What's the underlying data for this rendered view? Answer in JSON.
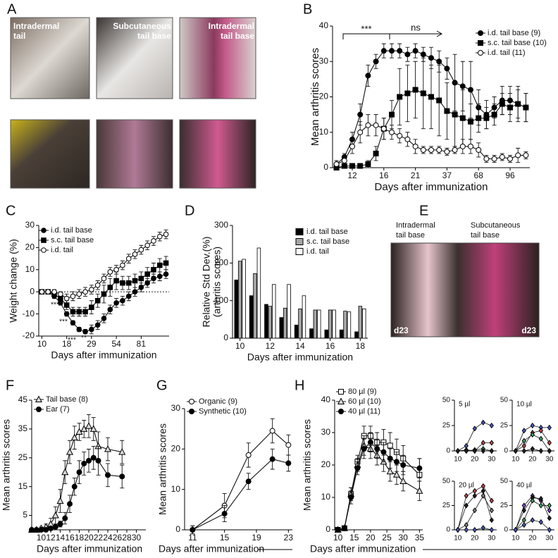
{
  "figure": {
    "A": {
      "letter": "A",
      "labels": [
        [
          "Intradermal",
          "tail"
        ],
        [
          "Subcutaneous",
          "tail base"
        ],
        [
          "Intradermal",
          "tail base"
        ]
      ]
    },
    "E": {
      "letter": "E",
      "labels": [
        [
          "Intradermal",
          "tail base"
        ],
        [
          "Subcutaneous",
          "tail base"
        ]
      ],
      "days": [
        "d23",
        "d23"
      ]
    }
  },
  "chart_data": [
    {
      "panel": "B",
      "type": "line",
      "ylabel": [
        "Mean arthritis scores"
      ],
      "xlabel": "Days after immunization",
      "categories": [
        null,
        null,
        "12",
        null,
        null,
        null,
        "16",
        null,
        null,
        null,
        "21",
        null,
        null,
        null,
        "37",
        null,
        null,
        null,
        "68",
        null,
        null,
        null,
        "96",
        null,
        null
      ],
      "ylim": [
        0,
        40
      ],
      "yticks": [
        0,
        10,
        20,
        30,
        40
      ],
      "legend": "upper right",
      "annotations": [
        "***",
        "ns"
      ],
      "series": [
        {
          "name": "i.d. tail base (9)",
          "color": "#000000",
          "marker": "circle",
          "values": [
            1,
            3,
            8,
            15,
            26,
            30,
            33,
            33,
            33,
            32,
            33,
            32,
            31,
            30,
            28,
            24,
            23,
            22,
            17,
            15,
            17,
            19,
            19,
            18,
            17
          ],
          "errors": [
            1,
            1,
            2,
            3,
            3,
            2,
            2,
            2,
            2,
            2,
            2,
            2,
            3,
            3,
            3,
            8,
            7,
            8,
            5,
            4,
            3,
            4,
            4,
            5,
            4
          ]
        },
        {
          "name": "s.c. tail base (10)",
          "color": "#000000",
          "marker": "square",
          "values": [
            0,
            0.5,
            0.5,
            0.5,
            1,
            4,
            11,
            15,
            20,
            21,
            22,
            21,
            20,
            19,
            16,
            15,
            14,
            13,
            14,
            14,
            15,
            18,
            17,
            18,
            17
          ],
          "errors": [
            0.5,
            0.5,
            0.5,
            0.5,
            1,
            2,
            3,
            4,
            8,
            8,
            8,
            10,
            9,
            10,
            8,
            9,
            8,
            5,
            4,
            3,
            3,
            3,
            4,
            4,
            4
          ]
        },
        {
          "name": "i.d. tail (11)",
          "color": "#ffffff",
          "marker": "circle",
          "values": [
            1,
            2,
            6,
            10,
            12,
            12,
            11,
            10,
            9,
            8,
            6,
            5,
            5,
            5,
            4.5,
            5,
            6,
            6,
            5,
            2.5,
            2.5,
            3,
            2.5,
            3.5,
            3.5
          ],
          "errors": [
            1,
            1,
            2,
            3,
            3,
            3,
            3,
            2,
            2,
            2,
            2,
            1,
            1,
            1,
            1,
            1,
            2,
            2,
            2,
            1,
            1,
            1,
            1,
            2,
            1
          ]
        }
      ]
    },
    {
      "panel": "C",
      "type": "line",
      "ylabel": [
        "Weight change (%)"
      ],
      "xlabel": "Days after immunization",
      "categories": [
        "10",
        null,
        null,
        null,
        "18",
        null,
        null,
        null,
        "29",
        null,
        null,
        null,
        "54",
        null,
        null,
        null,
        "81",
        null,
        null,
        null,
        null
      ],
      "ylim": [
        -20,
        30
      ],
      "yticks": [
        -20,
        -10,
        0,
        10,
        20,
        30
      ],
      "zeroline": true,
      "legend": "upper left",
      "annotations": [
        "***",
        "***",
        "***",
        "**",
        "*"
      ],
      "series": [
        {
          "name": "i.d. tail base",
          "color": "#000000",
          "marker": "circle",
          "values": [
            0,
            0,
            -2,
            -5,
            -10,
            -14,
            -17,
            -18,
            -17,
            -15,
            -12,
            -8,
            -5,
            -4,
            -2,
            0,
            2,
            4,
            6,
            7,
            8
          ],
          "errors": [
            0.5,
            0.5,
            1,
            1,
            1,
            1,
            1,
            1,
            2,
            2,
            2,
            2,
            2,
            2,
            2,
            2,
            2,
            2,
            2,
            2,
            2
          ]
        },
        {
          "name": "s.c. tail base",
          "color": "#000000",
          "marker": "square",
          "values": [
            0,
            0,
            -1,
            -3,
            -6,
            -9,
            -9,
            -9,
            -7,
            -4,
            -1,
            2,
            5,
            4,
            4,
            5,
            6,
            8,
            10,
            12,
            13
          ],
          "errors": [
            0.5,
            0.5,
            1,
            1,
            2,
            2,
            2,
            2,
            3,
            3,
            4,
            4,
            4,
            3,
            3,
            3,
            3,
            3,
            3,
            3,
            3
          ]
        },
        {
          "name": "i.d. tail",
          "color": "#ffffff",
          "marker": "circle",
          "values": [
            0,
            0,
            0,
            -1,
            -3,
            -2,
            -1,
            0,
            1,
            3,
            6,
            9,
            10,
            12,
            15,
            17,
            19,
            21,
            23,
            25,
            26
          ],
          "errors": [
            0.5,
            0.5,
            1,
            1,
            2,
            2,
            2,
            2,
            2,
            2,
            2,
            2,
            2,
            2,
            2,
            2,
            2,
            2,
            2,
            2,
            2
          ]
        }
      ]
    },
    {
      "panel": "D",
      "type": "bar",
      "ylabel": [
        "Relative Std Dev.(%)",
        "(arthritis scores)"
      ],
      "xlabel": "Days after immunization",
      "categories": [
        "10",
        null,
        "12",
        null,
        "14",
        null,
        "16",
        null,
        "18"
      ],
      "ylim": [
        0,
        300
      ],
      "yticks": [
        0,
        100,
        200,
        300
      ],
      "legend": "upper right",
      "series": [
        {
          "name": "i.d. tail base",
          "color": "#000000",
          "values": [
            155,
            113,
            90,
            55,
            35,
            25,
            22,
            22,
            17
          ]
        },
        {
          "name": "s.c. tail base",
          "color": "#a6a6a6",
          "values": [
            205,
            172,
            85,
            80,
            78,
            75,
            75,
            72,
            85
          ]
        },
        {
          "name": "i.d. tail",
          "color": "#ffffff",
          "values": [
            210,
            240,
            143,
            143,
            113,
            75,
            75,
            70,
            78
          ]
        }
      ]
    },
    {
      "panel": "F",
      "type": "line",
      "ylabel": [
        "Mean arthritis scores"
      ],
      "xlabel": "Days after immunization",
      "x": [
        8,
        9,
        10,
        11,
        12,
        13,
        14,
        15,
        16,
        17,
        18,
        19,
        20,
        21,
        22,
        24,
        27
      ],
      "xlim": [
        8,
        32
      ],
      "xticks": [
        10,
        12,
        14,
        16,
        18,
        20,
        22,
        24,
        26,
        28,
        30
      ],
      "ylim": [
        0,
        45
      ],
      "yticks": [
        5,
        15,
        25,
        35,
        45
      ],
      "legend": "upper left",
      "series": [
        {
          "name": "Tail base (8)",
          "color": "#d9d9d9",
          "marker": "triangle",
          "values": [
            0,
            0,
            0.5,
            1,
            2,
            5,
            10,
            20,
            27,
            32,
            34,
            35,
            36,
            35,
            29,
            28,
            27
          ],
          "errors": [
            0,
            0,
            0.5,
            1,
            2,
            3,
            4,
            4,
            4,
            4,
            3,
            3,
            4,
            4,
            5,
            4,
            4
          ]
        },
        {
          "name": "Ear (7)",
          "color": "#000000",
          "marker": "circle",
          "values": [
            0,
            0,
            0,
            0,
            0.5,
            1,
            2,
            4,
            9,
            15,
            20,
            23,
            24,
            25,
            24,
            19,
            18.5
          ],
          "errors": [
            0,
            0,
            0,
            0,
            0.5,
            1,
            1,
            2,
            3,
            3,
            4,
            4,
            4,
            4,
            5,
            4,
            4
          ]
        }
      ]
    },
    {
      "panel": "G",
      "type": "line",
      "ylabel": [
        "Mean arthritis scores"
      ],
      "xlabel": "Days after immunization",
      "x": [
        11,
        15,
        18,
        21,
        23
      ],
      "xlim": [
        10,
        23.5
      ],
      "xticks": [
        11,
        15,
        19,
        23
      ],
      "ylim": [
        0,
        30
      ],
      "yticks": [
        0,
        10,
        20,
        30
      ],
      "legend": "upper left",
      "series": [
        {
          "name": "Organic (9)",
          "color": "#ffffff",
          "marker": "circle",
          "values": [
            0,
            6,
            18.5,
            24.5,
            21
          ],
          "errors": [
            1,
            3,
            3,
            3,
            2.5
          ]
        },
        {
          "name": "Synthetic (10)",
          "color": "#000000",
          "marker": "circle",
          "values": [
            0,
            4,
            12,
            17.5,
            16.5
          ],
          "errors": [
            1,
            2,
            2,
            2.5,
            2
          ]
        }
      ]
    },
    {
      "panel": "H",
      "type": "line",
      "ylabel": [
        "Mean arthritis scores"
      ],
      "xlabel": "Days after immunization",
      "x": [
        10,
        12,
        14,
        16,
        18,
        20,
        22,
        24,
        26,
        28,
        30,
        35
      ],
      "xlim": [
        9,
        36
      ],
      "xticks": [
        10,
        15,
        20,
        25,
        30,
        35
      ],
      "ylim": [
        0,
        40
      ],
      "yticks": [
        0,
        10,
        20,
        30,
        40
      ],
      "legend": "upper left",
      "series": [
        {
          "name": "80 µl (9)",
          "color": "#ffffff",
          "marker": "square",
          "values": [
            0,
            0.5,
            11,
            21,
            29,
            29,
            27,
            27,
            26,
            24,
            22,
            17
          ],
          "errors": [
            0.5,
            0.5,
            2,
            2,
            3,
            3,
            3,
            4,
            4,
            4,
            4,
            5
          ]
        },
        {
          "name": "60 µl (10)",
          "color": "#d9d9d9",
          "marker": "triangle",
          "values": [
            0,
            0.5,
            11,
            20,
            26,
            25,
            23,
            21,
            18,
            17,
            15,
            12
          ],
          "errors": [
            0.5,
            0.5,
            2,
            2,
            3,
            3,
            3,
            3,
            3,
            3,
            3,
            3
          ]
        },
        {
          "name": "40 µl (11)",
          "color": "#000000",
          "marker": "circle",
          "values": [
            0,
            0.5,
            10,
            19,
            25,
            27,
            25,
            24,
            22,
            21,
            20,
            19
          ],
          "errors": [
            0.5,
            0.5,
            2,
            2,
            3,
            3,
            3,
            3,
            3,
            3,
            3,
            3
          ]
        }
      ]
    },
    {
      "type": "line",
      "title": "5 µl",
      "x": [
        10,
        15,
        20,
        25,
        30
      ],
      "xlim": [
        8,
        33
      ],
      "xticks": [
        10,
        20,
        30
      ],
      "ylim": [
        0,
        50
      ],
      "yticks": [
        0,
        25,
        50
      ],
      "series": [
        {
          "color": "#4a5fd0",
          "marker": "diamond",
          "values": [
            0,
            5,
            22,
            28,
            25
          ]
        },
        {
          "color": "#d04a4a",
          "marker": "diamond",
          "values": [
            0,
            1,
            0,
            8,
            8
          ]
        },
        {
          "color": "#3fae5a",
          "marker": "diamond",
          "values": [
            0,
            0,
            1,
            2,
            0
          ]
        },
        {
          "color": "#222222",
          "marker": "diamond",
          "values": [
            0,
            0,
            0,
            0,
            0
          ]
        }
      ]
    },
    {
      "type": "line",
      "title": "10 µl",
      "x": [
        10,
        15,
        20,
        25,
        30
      ],
      "xlim": [
        8,
        33
      ],
      "xticks": [
        10,
        20,
        30
      ],
      "ylim": [
        0,
        50
      ],
      "yticks": [
        0,
        25,
        50
      ],
      "series": [
        {
          "color": "#4a5fd0",
          "marker": "diamond",
          "values": [
            0,
            20,
            25,
            23,
            23
          ]
        },
        {
          "color": "#d04a4a",
          "marker": "diamond",
          "values": [
            0,
            5,
            18,
            20,
            8
          ]
        },
        {
          "color": "#3fae5a",
          "marker": "diamond",
          "values": [
            0,
            10,
            16,
            12,
            0
          ]
        },
        {
          "color": "#222222",
          "marker": "diamond",
          "values": [
            0,
            0,
            2,
            0,
            0
          ]
        }
      ]
    },
    {
      "type": "line",
      "title": "20 µl",
      "x": [
        10,
        15,
        20,
        25,
        30
      ],
      "xlim": [
        8,
        33
      ],
      "xticks": [
        10,
        20,
        30
      ],
      "ylim": [
        0,
        50
      ],
      "yticks": [
        0,
        25,
        50
      ],
      "series": [
        {
          "color": "#d04a4a",
          "marker": "diamond",
          "values": [
            0,
            35,
            40,
            45,
            30
          ]
        },
        {
          "color": "#222222",
          "marker": "diamond",
          "values": [
            0,
            25,
            35,
            40,
            10
          ]
        },
        {
          "color": "#888888",
          "marker": "diamond",
          "values": [
            0,
            5,
            20,
            35,
            20
          ]
        },
        {
          "color": "#4a5fd0",
          "marker": "diamond",
          "values": [
            0,
            0,
            0,
            2,
            0
          ]
        }
      ]
    },
    {
      "type": "line",
      "title": "40 µl",
      "x": [
        10,
        15,
        20,
        25,
        30
      ],
      "xlim": [
        8,
        33
      ],
      "xticks": [
        10,
        20,
        30
      ],
      "ylim": [
        0,
        50
      ],
      "yticks": [
        0,
        25,
        50
      ],
      "series": [
        {
          "color": "#8a4ad0",
          "marker": "diamond",
          "values": [
            0,
            25,
            35,
            30,
            20
          ]
        },
        {
          "color": "#222222",
          "marker": "diamond",
          "values": [
            0,
            20,
            33,
            32,
            12
          ]
        },
        {
          "color": "#3fae5a",
          "marker": "diamond",
          "values": [
            0,
            10,
            30,
            25,
            25
          ]
        },
        {
          "color": "#4a5fd0",
          "marker": "diamond",
          "values": [
            0,
            5,
            10,
            8,
            0
          ]
        }
      ]
    }
  ]
}
